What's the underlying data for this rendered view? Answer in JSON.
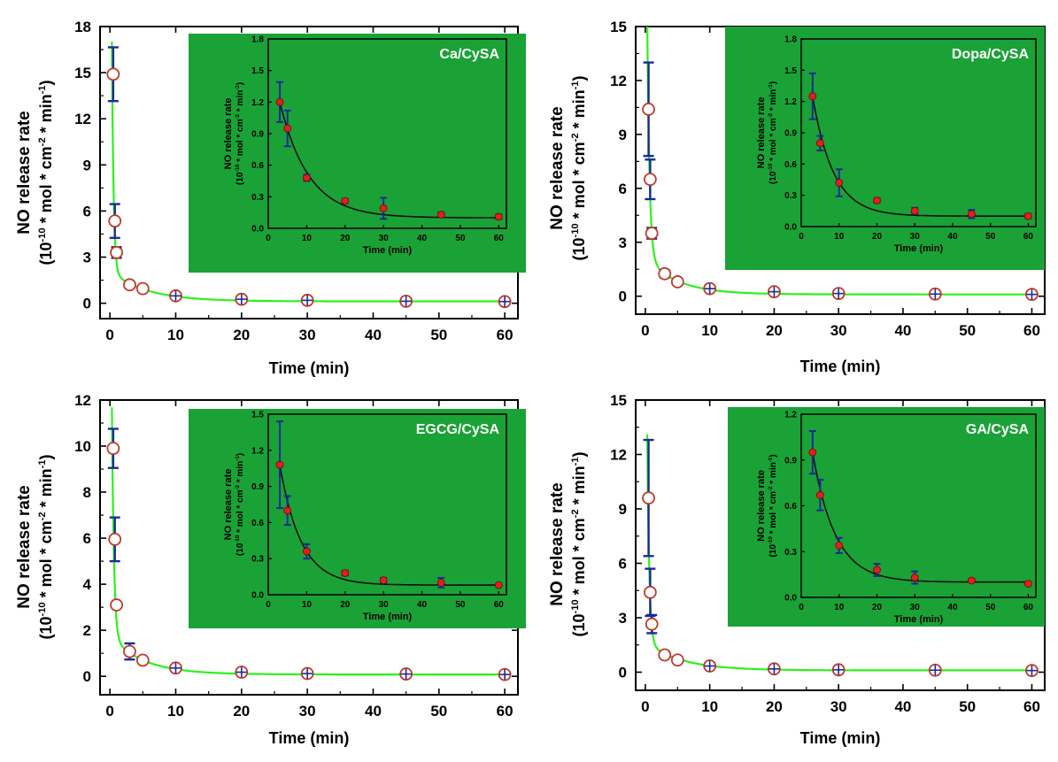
{
  "colors": {
    "inset_bg": "#1aa237",
    "fit_main": "#2cf21b",
    "fit_inset": "#111111",
    "marker_main": "#c0392b",
    "error_bar": "#1a2a99",
    "marker_inset": "#e02020"
  },
  "chart_data": [
    {
      "type": "scatter",
      "xlabel": "Time (min)",
      "ylabel_line1": "NO release rate",
      "ylabel_line2": "(10-10 * mol * cm-2 * min-1)",
      "xlim": [
        -1.5,
        62
      ],
      "ylim": [
        -1,
        18
      ],
      "xticks": [
        0,
        10,
        20,
        30,
        40,
        50,
        60
      ],
      "yticks": [
        0,
        3,
        6,
        9,
        12,
        15,
        18
      ],
      "x": [
        0.5,
        0.75,
        1,
        3,
        5,
        10,
        20,
        30,
        45,
        60
      ],
      "y": [
        14.9,
        5.35,
        3.3,
        1.2,
        0.95,
        0.48,
        0.26,
        0.19,
        0.13,
        0.11
      ],
      "err": [
        1.75,
        1.1,
        0.35,
        0.2,
        0.15,
        0.05,
        0.03,
        0.1,
        0.02,
        0.02
      ],
      "fit": {
        "y0": 0.12,
        "A1": 15.0,
        "t1": 0.25,
        "A2": 1.9,
        "t2": 5.5
      },
      "inset": {
        "label": "Ca/CySA",
        "xlabel": "Time (min)",
        "ylabel_line1": "NO release rate",
        "ylabel_line2": "(10-10 * mol * cm-2 * min-1)",
        "xlim": [
          0,
          62
        ],
        "ylim": [
          0,
          1.8
        ],
        "xticks": [
          0,
          10,
          20,
          30,
          40,
          50,
          60
        ],
        "yticks": [
          0.0,
          0.3,
          0.6,
          0.9,
          1.2,
          1.5,
          1.8
        ],
        "ytick_labels": [
          "0.0",
          "0.3",
          "0.6",
          "0.9",
          "1.2",
          "1.5",
          "1.8"
        ],
        "x": [
          3,
          5,
          10,
          20,
          30,
          45,
          60
        ],
        "y": [
          1.2,
          0.95,
          0.48,
          0.26,
          0.19,
          0.13,
          0.11
        ],
        "err": [
          0.19,
          0.17,
          0.03,
          0.02,
          0.1,
          0.02,
          0.02
        ],
        "fit": {
          "y0": 0.1,
          "A": 1.72,
          "t": 7.5
        }
      }
    },
    {
      "type": "scatter",
      "xlabel": "Time (min)",
      "ylabel_line1": "NO release rate",
      "ylabel_line2": "(10-10 * mol * cm-2 * min-1)",
      "xlim": [
        -1.5,
        62
      ],
      "ylim": [
        -1,
        15
      ],
      "xticks": [
        0,
        10,
        20,
        30,
        40,
        50,
        60
      ],
      "yticks": [
        0,
        3,
        6,
        9,
        12,
        15
      ],
      "x": [
        0.5,
        0.75,
        1,
        3,
        5,
        10,
        20,
        30,
        45,
        60
      ],
      "y": [
        10.4,
        6.5,
        3.5,
        1.25,
        0.8,
        0.42,
        0.25,
        0.15,
        0.12,
        0.1
      ],
      "err": [
        2.6,
        1.1,
        0.3,
        0.2,
        0.1,
        0.1,
        0.03,
        0.03,
        0.05,
        0.02
      ],
      "fit": {
        "y0": 0.1,
        "A1": 13.0,
        "t1": 0.35,
        "A2": 2.0,
        "t2": 4.8
      },
      "inset": {
        "label": "Dopa/CySA",
        "xlabel": "Time (min)",
        "ylabel_line1": "NO release rate",
        "ylabel_line2": "(10-10 * mol * cm-2 * min-1)",
        "xlim": [
          0,
          62
        ],
        "ylim": [
          0,
          1.8
        ],
        "xticks": [
          0,
          10,
          20,
          30,
          40,
          50,
          60
        ],
        "yticks": [
          0.0,
          0.3,
          0.6,
          0.9,
          1.2,
          1.5,
          1.8
        ],
        "ytick_labels": [
          "0.0",
          "0.3",
          "0.6",
          "0.9",
          "1.2",
          "1.5",
          "1.8"
        ],
        "x": [
          3,
          5,
          10,
          20,
          30,
          45,
          60
        ],
        "y": [
          1.25,
          0.8,
          0.42,
          0.25,
          0.15,
          0.12,
          0.1
        ],
        "err": [
          0.22,
          0.07,
          0.13,
          0.02,
          0.03,
          0.04,
          0.02
        ],
        "fit": {
          "y0": 0.1,
          "A": 2.0,
          "t": 5.5
        }
      }
    },
    {
      "type": "scatter",
      "xlabel": "Time (min)",
      "ylabel_line1": "NO release rate",
      "ylabel_line2": "(10-10 * mol * cm-2 * min-1)",
      "xlim": [
        -1.5,
        62
      ],
      "ylim": [
        -0.8,
        12
      ],
      "xticks": [
        0,
        10,
        20,
        30,
        40,
        50,
        60
      ],
      "yticks": [
        0,
        2,
        4,
        6,
        8,
        10,
        12
      ],
      "x": [
        0.5,
        0.75,
        1,
        3,
        5,
        10,
        20,
        30,
        45,
        60
      ],
      "y": [
        9.9,
        5.95,
        3.1,
        1.08,
        0.7,
        0.36,
        0.18,
        0.12,
        0.1,
        0.08
      ],
      "err": [
        0.85,
        0.95,
        0.1,
        0.35,
        0.1,
        0.05,
        0.02,
        0.02,
        0.04,
        0.01
      ],
      "fit": {
        "y0": 0.08,
        "A1": 10.0,
        "t1": 0.3,
        "A2": 1.6,
        "t2": 5.0
      },
      "inset": {
        "label": "EGCG/CySA",
        "xlabel": "Time (min)",
        "ylabel_line1": "NO release rate",
        "ylabel_line2": "(10-10 * mol * cm-2 * min-1)",
        "xlim": [
          0,
          62
        ],
        "ylim": [
          0,
          1.5
        ],
        "xticks": [
          0,
          10,
          20,
          30,
          40,
          50,
          60
        ],
        "yticks": [
          0.0,
          0.3,
          0.6,
          0.9,
          1.2,
          1.5
        ],
        "ytick_labels": [
          "0.0",
          "0.3",
          "0.6",
          "0.9",
          "1.2",
          "1.5"
        ],
        "x": [
          3,
          5,
          10,
          20,
          30,
          45,
          60
        ],
        "y": [
          1.08,
          0.7,
          0.36,
          0.18,
          0.12,
          0.1,
          0.08
        ],
        "err": [
          0.36,
          0.12,
          0.06,
          0.02,
          0.02,
          0.04,
          0.01
        ],
        "fit": {
          "y0": 0.08,
          "A": 1.75,
          "t": 5.5
        }
      }
    },
    {
      "type": "scatter",
      "xlabel": "Time (min)",
      "ylabel_line1": "NO release rate",
      "ylabel_line2": "(10-10 * mol * cm-2 * min-1)",
      "xlim": [
        -1.5,
        62
      ],
      "ylim": [
        -1,
        15
      ],
      "xticks": [
        0,
        10,
        20,
        30,
        40,
        50,
        60
      ],
      "yticks": [
        0,
        3,
        6,
        9,
        12,
        15
      ],
      "x": [
        0.5,
        0.75,
        1,
        3,
        5,
        10,
        20,
        30,
        45,
        60
      ],
      "y": [
        9.6,
        4.4,
        2.65,
        0.95,
        0.67,
        0.34,
        0.18,
        0.13,
        0.11,
        0.09
      ],
      "err": [
        3.2,
        1.3,
        0.5,
        0.15,
        0.1,
        0.05,
        0.04,
        0.04,
        0.01,
        0.01
      ],
      "fit": {
        "y0": 0.1,
        "A1": 11.5,
        "t1": 0.3,
        "A2": 1.5,
        "t2": 5.5
      },
      "inset": {
        "label": "GA/CySA",
        "xlabel": "Time (min)",
        "ylabel_line1": "NO release rate",
        "ylabel_line2": "(10-10 * mol * cm-2 * min-1)",
        "xlim": [
          0,
          62
        ],
        "ylim": [
          0,
          1.2
        ],
        "xticks": [
          0,
          10,
          20,
          30,
          40,
          50,
          60
        ],
        "yticks": [
          0.0,
          0.3,
          0.6,
          0.9,
          1.2
        ],
        "ytick_labels": [
          "0.0",
          "0.3",
          "0.6",
          "0.9",
          "1.2"
        ],
        "x": [
          3,
          5,
          10,
          20,
          30,
          45,
          60
        ],
        "y": [
          0.95,
          0.67,
          0.34,
          0.18,
          0.13,
          0.11,
          0.09
        ],
        "err": [
          0.14,
          0.1,
          0.05,
          0.04,
          0.04,
          0.01,
          0.01
        ],
        "fit": {
          "y0": 0.1,
          "A": 1.4,
          "t": 6.0
        }
      }
    }
  ]
}
